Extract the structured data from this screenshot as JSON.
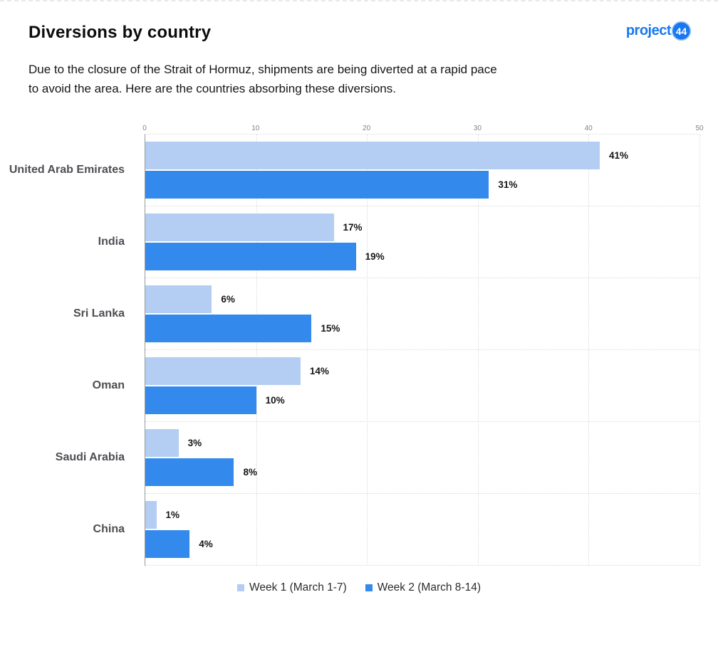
{
  "page": {
    "title": "Diversions by country",
    "subtitle_line1": "Due to the closure of the Strait of Hormuz, shipments are being diverted at a rapid pace",
    "subtitle_line2": "to avoid the area. Here are the countries absorbing these diversions."
  },
  "logo": {
    "text": "project",
    "badge": "44",
    "color": "#1878f0"
  },
  "chart_data": {
    "type": "bar",
    "orientation": "horizontal",
    "title": "Diversions by country",
    "categories": [
      "United Arab Emirates",
      "India",
      "Sri Lanka",
      "Oman",
      "Saudi Arabia",
      "China"
    ],
    "series": [
      {
        "name": "Week 1 (March 1-7)",
        "color": "#b3cdf3",
        "values": [
          41,
          17,
          6,
          14,
          3,
          1
        ]
      },
      {
        "name": "Week 2 (March 8-14)",
        "color": "#338aec",
        "values": [
          31,
          19,
          15,
          10,
          8,
          4
        ]
      }
    ],
    "value_suffix": "%",
    "xlim": [
      0,
      50
    ],
    "x_ticks": [
      0,
      10,
      20,
      30,
      40,
      50
    ],
    "grid": "dotted-vertical-and-group-separators",
    "legend_position": "bottom",
    "axis_line_color": "#97999e",
    "gridline_color": "#dcdcdc",
    "tick_color": "#82838a",
    "category_label_color": "#4d4e53",
    "value_label_color": "#141518"
  }
}
